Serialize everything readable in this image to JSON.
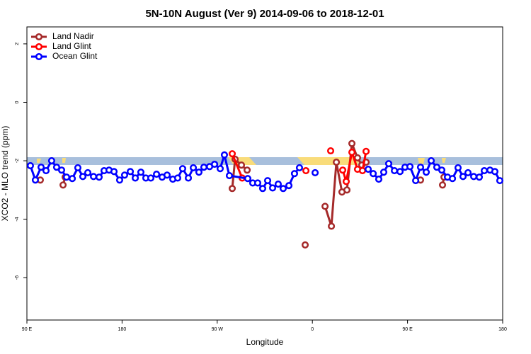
{
  "chart_data": {
    "type": "line",
    "title": "5N-10N August (Ver 9)   2014-09-06 to 2018-12-01",
    "x_label": "Longitude",
    "y_label": "XCO2 - MLO trend (ppm)",
    "xlim": [
      90,
      540
    ],
    "ylim": [
      -7.45,
      2.58
    ],
    "xticks": [
      {
        "value": 90,
        "label": "90 E"
      },
      {
        "value": 180,
        "label": "180"
      },
      {
        "value": 270,
        "label": "90 W"
      },
      {
        "value": 360,
        "label": "0"
      },
      {
        "value": 450,
        "label": "90 E"
      },
      {
        "value": 540,
        "label": "180"
      }
    ],
    "yticks": [
      2,
      0,
      -2,
      -4,
      -6
    ],
    "legend": "top-left",
    "series": [
      {
        "name": "Land Nadir",
        "color": "#a52a2a",
        "x": [
          102.7,
          null,
          124.2,
          126.2,
          null,
          284.2,
          286.9,
          292.9,
          298.3,
          null,
          353.2,
          null,
          372.0,
          378.0,
          382.7,
          388.0,
          392.7,
          397.4,
          402.7,
          406.8,
          410.8,
          null,
          462.3,
          null,
          483.1,
          484.5
        ],
        "values": [
          -2.66,
          null,
          -2.83,
          -2.56,
          null,
          -2.95,
          -1.95,
          -2.15,
          -2.32,
          null,
          -4.88,
          null,
          -3.56,
          -4.24,
          -2.05,
          -3.07,
          -3.0,
          -1.41,
          -1.9,
          -2.15,
          -2.05,
          null,
          -2.66,
          null,
          -2.83,
          -2.56
        ]
      },
      {
        "name": "Land Glint",
        "color": "#ff0000",
        "x": [
          284.2,
          293.6,
          null,
          353.9,
          null,
          377.3,
          null,
          388.7,
          392.0,
          397.4,
          402.7,
          407.4,
          410.8
        ],
        "values": [
          -1.76,
          -2.59,
          null,
          -2.34,
          null,
          -1.66,
          null,
          -2.32,
          -2.71,
          -1.71,
          -2.29,
          -2.34,
          -1.68
        ]
      },
      {
        "name": "Ocean Glint",
        "color": "#0000ff",
        "x": [
          93.3,
          98.0,
          103.4,
          108.1,
          113.4,
          118.1,
          122.8,
          127.5,
          132.9,
          138.2,
          142.9,
          147.6,
          153.0,
          158.3,
          163.0,
          167.7,
          172.4,
          177.7,
          182.4,
          187.8,
          192.5,
          197.8,
          202.5,
          207.2,
          212.6,
          217.9,
          222.6,
          228.0,
          232.6,
          237.3,
          242.7,
          247.4,
          252.7,
          257.4,
          262.8,
          267.5,
          272.8,
          276.8,
          281.5,
          298.9,
          303.6,
          308.3,
          313.0,
          317.7,
          322.4,
          327.7,
          332.4,
          337.8,
          343.1,
          347.8,
          null,
          362.6,
          null,
          412.8,
          417.5,
          422.8,
          427.5,
          432.2,
          437.6,
          442.9,
          447.6,
          452.3,
          457.7,
          462.3,
          467.7,
          472.4,
          477.7,
          482.4,
          487.8,
          492.5,
          497.8,
          502.5,
          507.2,
          512.6,
          517.9,
          522.6,
          528.0,
          532.6,
          537.3
        ],
        "values": [
          -2.17,
          -2.66,
          -2.22,
          -2.34,
          -2.0,
          -2.22,
          -2.32,
          -2.56,
          -2.61,
          -2.24,
          -2.54,
          -2.41,
          -2.54,
          -2.56,
          -2.34,
          -2.32,
          -2.37,
          -2.66,
          -2.49,
          -2.37,
          -2.59,
          -2.39,
          -2.59,
          -2.59,
          -2.46,
          -2.56,
          -2.49,
          -2.63,
          -2.59,
          -2.27,
          -2.59,
          -2.24,
          -2.39,
          -2.22,
          -2.2,
          -2.12,
          -2.27,
          -1.8,
          -2.51,
          -2.61,
          -2.76,
          -2.76,
          -2.95,
          -2.68,
          -2.93,
          -2.8,
          -2.95,
          -2.85,
          -2.44,
          -2.24,
          null,
          -2.41,
          null,
          -2.29,
          -2.44,
          -2.63,
          -2.39,
          -2.1,
          -2.34,
          -2.37,
          -2.22,
          -2.2,
          -2.68,
          -2.22,
          -2.39,
          -2.0,
          -2.22,
          -2.32,
          -2.56,
          -2.61,
          -2.24,
          -2.54,
          -2.41,
          -2.54,
          -2.56,
          -2.34,
          -2.32,
          -2.37,
          -2.68
        ]
      }
    ]
  }
}
